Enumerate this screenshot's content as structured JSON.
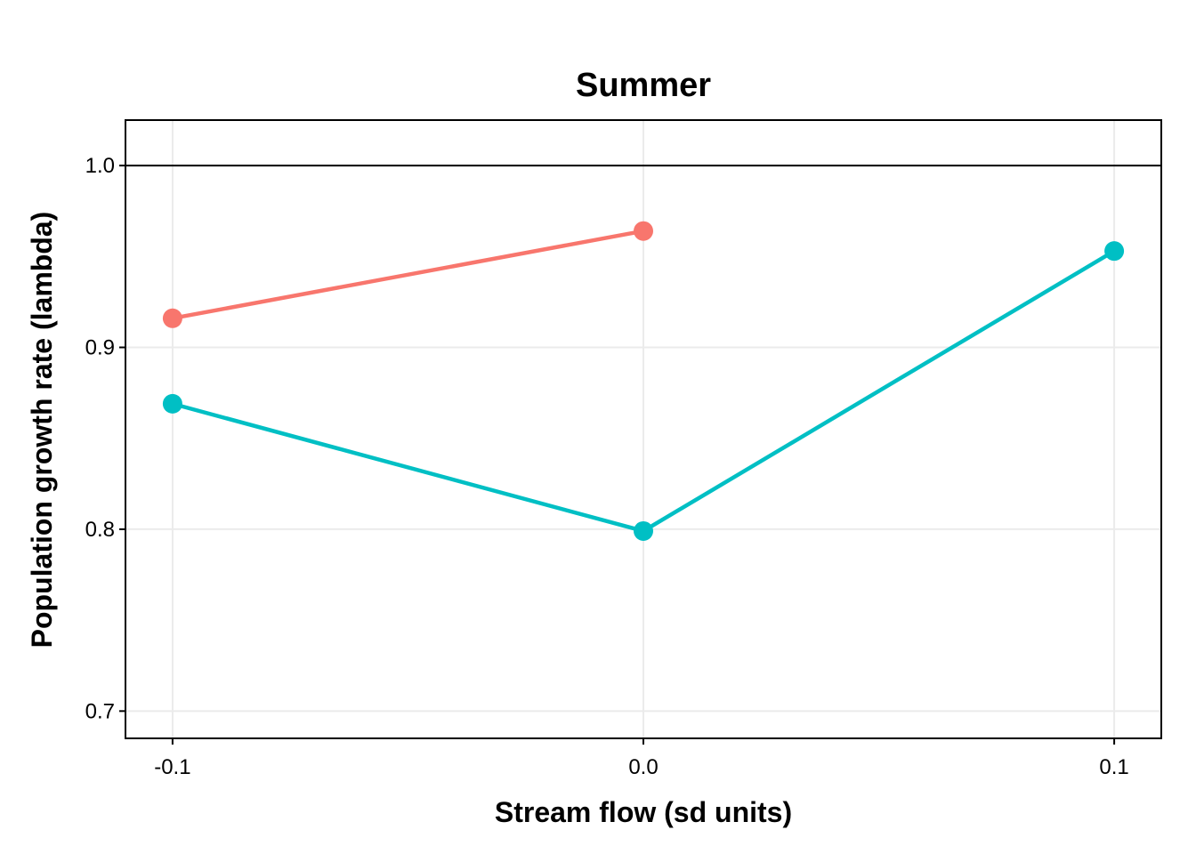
{
  "chart_data": {
    "type": "line",
    "title": "Summer",
    "xlabel": "Stream flow (sd units)",
    "ylabel": "Population growth rate (lambda)",
    "x_ticks": [
      "-0.1",
      "0.0",
      "0.1"
    ],
    "y_ticks": [
      "0.7",
      "0.8",
      "0.9",
      "1.0"
    ],
    "xlim": [
      -0.11,
      0.11
    ],
    "ylim": [
      0.685,
      1.025
    ],
    "reference_line": 1.0,
    "grid": true,
    "legend": "none",
    "series": [
      {
        "color": "#F8766D",
        "points": [
          {
            "x": -0.1,
            "y": 0.916
          },
          {
            "x": 0.0,
            "y": 0.964
          }
        ]
      },
      {
        "color": "#00BFC4",
        "points": [
          {
            "x": -0.1,
            "y": 0.869
          },
          {
            "x": 0.0,
            "y": 0.799
          },
          {
            "x": 0.1,
            "y": 0.953
          }
        ]
      }
    ]
  }
}
